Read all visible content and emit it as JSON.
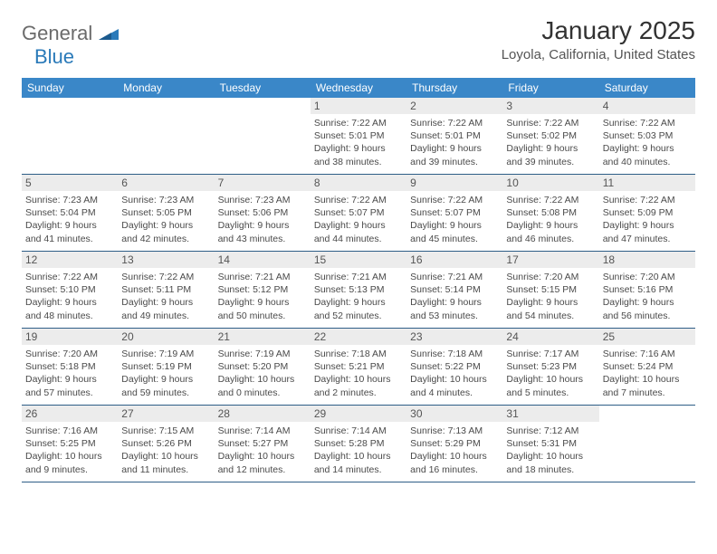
{
  "logo": {
    "general": "General",
    "blue": "Blue"
  },
  "title": "January 2025",
  "location": "Loyola, California, United States",
  "colors": {
    "header_bg": "#3a87c8",
    "header_text": "#ffffff",
    "daynum_bg": "#ececec",
    "daynum_text": "#555555",
    "body_text": "#4a4a4a",
    "rule": "#2e5e87",
    "logo_gray": "#6b6b6b",
    "logo_blue": "#2a7ab9",
    "title_color": "#323232"
  },
  "weekdays": [
    "Sunday",
    "Monday",
    "Tuesday",
    "Wednesday",
    "Thursday",
    "Friday",
    "Saturday"
  ],
  "weeks": [
    [
      null,
      null,
      null,
      {
        "n": "1",
        "sr": "7:22 AM",
        "ss": "5:01 PM",
        "dl": "9 hours and 38 minutes."
      },
      {
        "n": "2",
        "sr": "7:22 AM",
        "ss": "5:01 PM",
        "dl": "9 hours and 39 minutes."
      },
      {
        "n": "3",
        "sr": "7:22 AM",
        "ss": "5:02 PM",
        "dl": "9 hours and 39 minutes."
      },
      {
        "n": "4",
        "sr": "7:22 AM",
        "ss": "5:03 PM",
        "dl": "9 hours and 40 minutes."
      }
    ],
    [
      {
        "n": "5",
        "sr": "7:23 AM",
        "ss": "5:04 PM",
        "dl": "9 hours and 41 minutes."
      },
      {
        "n": "6",
        "sr": "7:23 AM",
        "ss": "5:05 PM",
        "dl": "9 hours and 42 minutes."
      },
      {
        "n": "7",
        "sr": "7:23 AM",
        "ss": "5:06 PM",
        "dl": "9 hours and 43 minutes."
      },
      {
        "n": "8",
        "sr": "7:22 AM",
        "ss": "5:07 PM",
        "dl": "9 hours and 44 minutes."
      },
      {
        "n": "9",
        "sr": "7:22 AM",
        "ss": "5:07 PM",
        "dl": "9 hours and 45 minutes."
      },
      {
        "n": "10",
        "sr": "7:22 AM",
        "ss": "5:08 PM",
        "dl": "9 hours and 46 minutes."
      },
      {
        "n": "11",
        "sr": "7:22 AM",
        "ss": "5:09 PM",
        "dl": "9 hours and 47 minutes."
      }
    ],
    [
      {
        "n": "12",
        "sr": "7:22 AM",
        "ss": "5:10 PM",
        "dl": "9 hours and 48 minutes."
      },
      {
        "n": "13",
        "sr": "7:22 AM",
        "ss": "5:11 PM",
        "dl": "9 hours and 49 minutes."
      },
      {
        "n": "14",
        "sr": "7:21 AM",
        "ss": "5:12 PM",
        "dl": "9 hours and 50 minutes."
      },
      {
        "n": "15",
        "sr": "7:21 AM",
        "ss": "5:13 PM",
        "dl": "9 hours and 52 minutes."
      },
      {
        "n": "16",
        "sr": "7:21 AM",
        "ss": "5:14 PM",
        "dl": "9 hours and 53 minutes."
      },
      {
        "n": "17",
        "sr": "7:20 AM",
        "ss": "5:15 PM",
        "dl": "9 hours and 54 minutes."
      },
      {
        "n": "18",
        "sr": "7:20 AM",
        "ss": "5:16 PM",
        "dl": "9 hours and 56 minutes."
      }
    ],
    [
      {
        "n": "19",
        "sr": "7:20 AM",
        "ss": "5:18 PM",
        "dl": "9 hours and 57 minutes."
      },
      {
        "n": "20",
        "sr": "7:19 AM",
        "ss": "5:19 PM",
        "dl": "9 hours and 59 minutes."
      },
      {
        "n": "21",
        "sr": "7:19 AM",
        "ss": "5:20 PM",
        "dl": "10 hours and 0 minutes."
      },
      {
        "n": "22",
        "sr": "7:18 AM",
        "ss": "5:21 PM",
        "dl": "10 hours and 2 minutes."
      },
      {
        "n": "23",
        "sr": "7:18 AM",
        "ss": "5:22 PM",
        "dl": "10 hours and 4 minutes."
      },
      {
        "n": "24",
        "sr": "7:17 AM",
        "ss": "5:23 PM",
        "dl": "10 hours and 5 minutes."
      },
      {
        "n": "25",
        "sr": "7:16 AM",
        "ss": "5:24 PM",
        "dl": "10 hours and 7 minutes."
      }
    ],
    [
      {
        "n": "26",
        "sr": "7:16 AM",
        "ss": "5:25 PM",
        "dl": "10 hours and 9 minutes."
      },
      {
        "n": "27",
        "sr": "7:15 AM",
        "ss": "5:26 PM",
        "dl": "10 hours and 11 minutes."
      },
      {
        "n": "28",
        "sr": "7:14 AM",
        "ss": "5:27 PM",
        "dl": "10 hours and 12 minutes."
      },
      {
        "n": "29",
        "sr": "7:14 AM",
        "ss": "5:28 PM",
        "dl": "10 hours and 14 minutes."
      },
      {
        "n": "30",
        "sr": "7:13 AM",
        "ss": "5:29 PM",
        "dl": "10 hours and 16 minutes."
      },
      {
        "n": "31",
        "sr": "7:12 AM",
        "ss": "5:31 PM",
        "dl": "10 hours and 18 minutes."
      },
      null
    ]
  ],
  "labels": {
    "sunrise": "Sunrise: ",
    "sunset": "Sunset: ",
    "daylight": "Daylight: "
  }
}
